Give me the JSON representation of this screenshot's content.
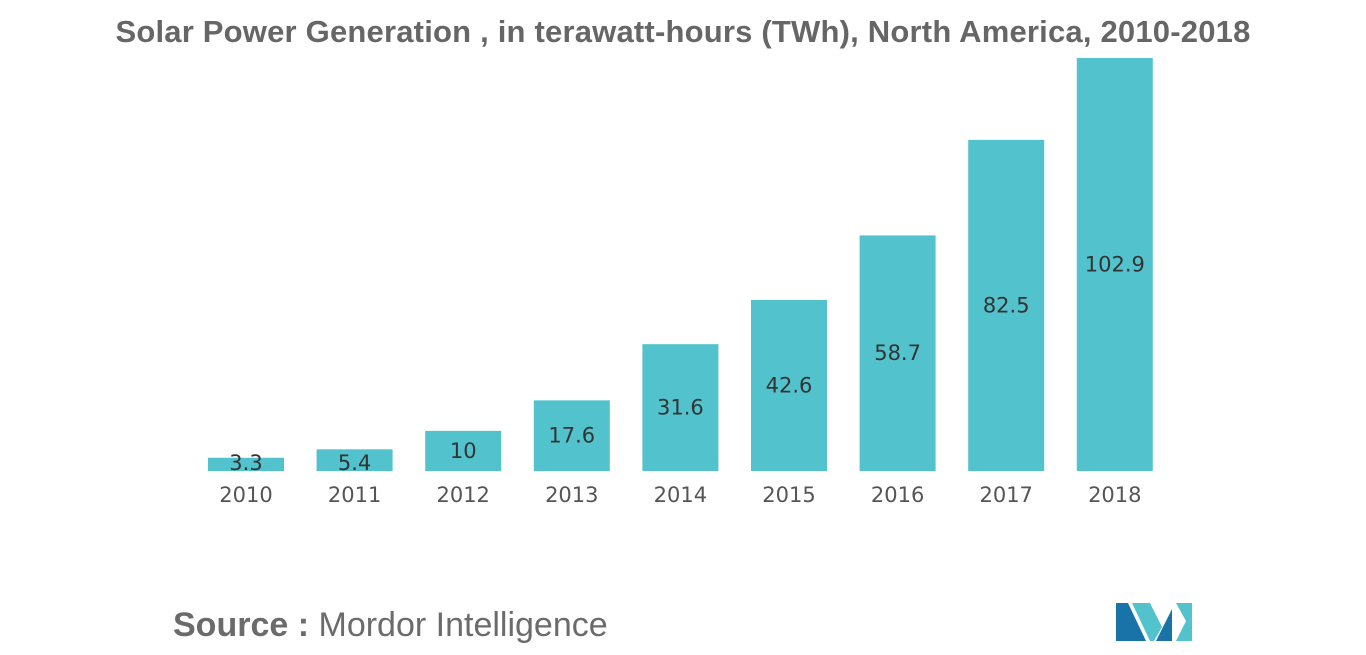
{
  "chart_data": {
    "type": "bar",
    "title": "Solar Power Generation , in terawatt-hours (TWh), North America, 2010-2018",
    "categories": [
      "2010",
      "2011",
      "2012",
      "2013",
      "2014",
      "2015",
      "2016",
      "2017",
      "2018"
    ],
    "values": [
      3.3,
      5.4,
      10,
      17.6,
      31.6,
      42.6,
      58.7,
      82.5,
      102.9
    ],
    "xlabel": "",
    "ylabel": "",
    "ylim": [
      0,
      102.9
    ],
    "grid": false,
    "legend": "none",
    "bar_color": "#52c3cc"
  },
  "source": {
    "label": "Source :",
    "name": "Mordor Intelligence"
  },
  "colors": {
    "title": "#666666",
    "logo_dark": "#1a73a8",
    "logo_light": "#52c3cc"
  }
}
